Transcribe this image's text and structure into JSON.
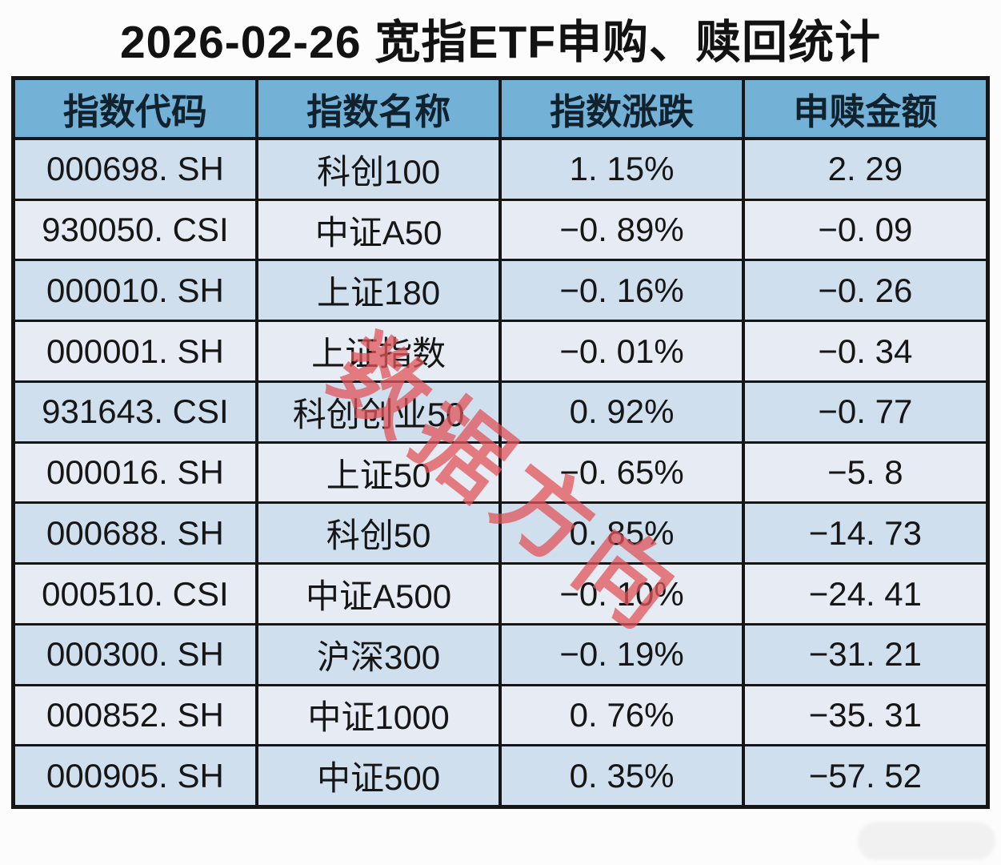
{
  "title": "2026-02-26 宽指ETF申购、赎回统计",
  "watermark": {
    "text": "数据方向",
    "color": "#e05459"
  },
  "table": {
    "headers": [
      "指数代码",
      "指数名称",
      "指数涨跌",
      "申赎金额"
    ],
    "rows": [
      {
        "code": "000698. SH",
        "name": "科创100",
        "change": "1. 15%",
        "amount": "2. 29"
      },
      {
        "code": "930050. CSI",
        "name": "中证A50",
        "change": "−0. 89%",
        "amount": "−0. 09"
      },
      {
        "code": "000010. SH",
        "name": "上证180",
        "change": "−0. 16%",
        "amount": "−0. 26"
      },
      {
        "code": "000001. SH",
        "name": "上证指数",
        "change": "−0. 01%",
        "amount": "−0. 34"
      },
      {
        "code": "931643. CSI",
        "name": "科创创业50",
        "change": "0. 92%",
        "amount": "−0. 77"
      },
      {
        "code": "000016. SH",
        "name": "上证50",
        "change": "−0. 65%",
        "amount": "−5. 8"
      },
      {
        "code": "000688. SH",
        "name": "科创50",
        "change": "0. 85%",
        "amount": "−14. 73"
      },
      {
        "code": "000510. CSI",
        "name": "中证A500",
        "change": "−0. 10%",
        "amount": "−24. 41"
      },
      {
        "code": "000300. SH",
        "name": "沪深300",
        "change": "−0. 19%",
        "amount": "−31. 21"
      },
      {
        "code": "000852. SH",
        "name": "中证1000",
        "change": "0. 76%",
        "amount": "−35. 31"
      },
      {
        "code": "000905. SH",
        "name": "中证500",
        "change": "0. 35%",
        "amount": "−57. 52"
      }
    ]
  },
  "colors": {
    "header_bg": "#74b1d7",
    "row_odd_bg": "#cfdfee",
    "row_even_bg": "#e7ecf4",
    "border": "#161616",
    "watermark_red": "#e05459"
  },
  "chart_data": {
    "type": "table",
    "title": "2026-02-26 宽指ETF申购、赎回统计",
    "columns": [
      "指数代码",
      "指数名称",
      "指数涨跌 (%)",
      "申赎金额"
    ],
    "rows": [
      [
        "000698.SH",
        "科创100",
        1.15,
        2.29
      ],
      [
        "930050.CSI",
        "中证A50",
        -0.89,
        -0.09
      ],
      [
        "000010.SH",
        "上证180",
        -0.16,
        -0.26
      ],
      [
        "000001.SH",
        "上证指数",
        -0.01,
        -0.34
      ],
      [
        "931643.CSI",
        "科创创业50",
        0.92,
        -0.77
      ],
      [
        "000016.SH",
        "上证50",
        -0.65,
        -5.8
      ],
      [
        "000688.SH",
        "科创50",
        0.85,
        -14.73
      ],
      [
        "000510.CSI",
        "中证A500",
        -0.1,
        -24.41
      ],
      [
        "000300.SH",
        "沪深300",
        -0.19,
        -31.21
      ],
      [
        "000852.SH",
        "中证1000",
        0.76,
        -35.31
      ],
      [
        "000905.SH",
        "中证500",
        0.35,
        -57.52
      ]
    ],
    "annotations": [
      "数据方向 (diagonal red watermark)"
    ],
    "legend_position": "none",
    "grid": true
  }
}
